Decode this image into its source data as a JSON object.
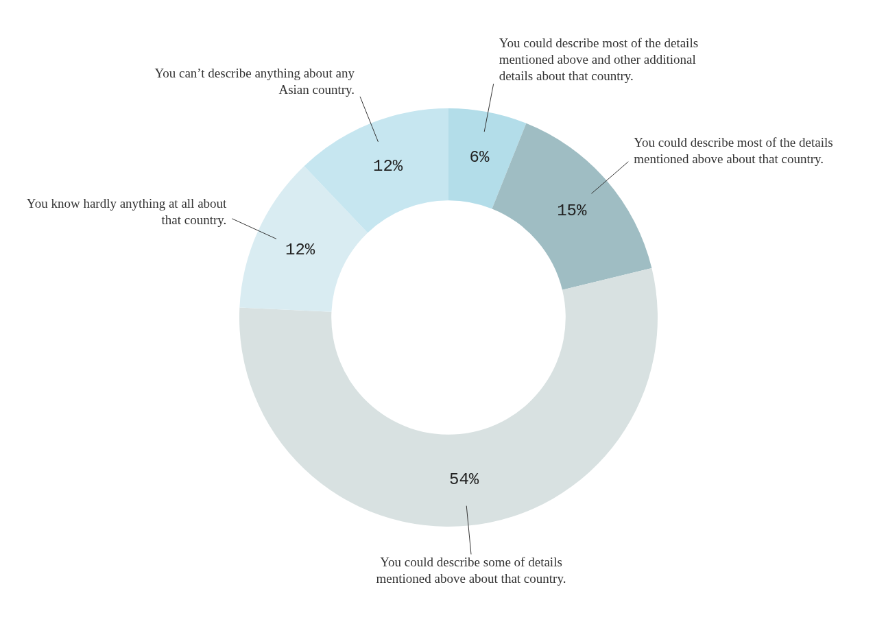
{
  "chart_data": {
    "type": "donut",
    "categories": [
      "You could describe most of the details mentioned above and other additional details about that country.",
      "You could describe most of the details mentioned above about that country.",
      "You could describe some of details mentioned above about that country.",
      "You know hardly anything at all about that country.",
      "You can’t describe anything about any Asian country."
    ],
    "values": [
      6,
      15,
      54,
      12,
      12
    ],
    "colors": [
      "#b3dde9",
      "#9fbdc3",
      "#d8e1e1",
      "#d9ecf2",
      "#c6e6f0"
    ],
    "value_labels": [
      "6%",
      "15%",
      "54%",
      "12%",
      "12%"
    ]
  }
}
